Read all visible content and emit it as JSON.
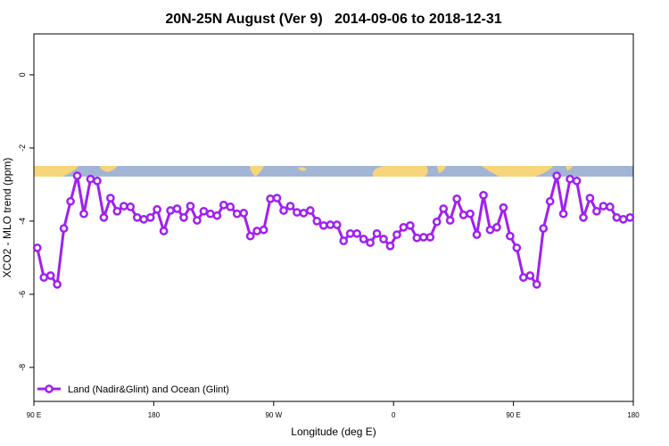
{
  "chart_data": {
    "type": "line",
    "title": "20N-25N August (Ver 9)   2014-09-06 to 2018-12-31",
    "xlabel": "Longitude (deg E)",
    "ylabel": "XCO2 - MLO trend (ppm)",
    "xlim": [
      90,
      540
    ],
    "xticks": [
      {
        "value": 90,
        "label": "90 E"
      },
      180,
      {
        "value": 270,
        "label": "90 W"
      },
      {
        "value": 360,
        "label": "0"
      },
      {
        "value": 450,
        "label": "90 E"
      },
      {
        "value": 540,
        "label": "180"
      }
    ],
    "ylim": [
      -8.93,
      1.12
    ],
    "yticks": [
      0,
      -2,
      -4,
      -6,
      -8
    ],
    "legend": "bottom left",
    "x": [
      92.5,
      97.5,
      102.5,
      107.5,
      112.5,
      117.5,
      122.5,
      127.5,
      132.5,
      137.5,
      142.5,
      147.5,
      152.5,
      157.5,
      162.5,
      167.5,
      172.5,
      177.5,
      182.5,
      187.5,
      192.5,
      197.5,
      202.5,
      207.5,
      212.5,
      217.5,
      222.5,
      227.5,
      232.5,
      237.5,
      242.5,
      247.5,
      252.5,
      257.5,
      262.5,
      267.5,
      272.5,
      277.5,
      282.5,
      287.5,
      292.5,
      297.5,
      302.5,
      307.5,
      312.5,
      317.5,
      322.5,
      327.5,
      332.5,
      337.5,
      342.5,
      347.5,
      352.5,
      357.5,
      362.5,
      367.5,
      372.5,
      377.5,
      382.5,
      387.5,
      392.5,
      397.5,
      402.5,
      407.5,
      412.5,
      417.5,
      422.5,
      427.5,
      432.5,
      437.5,
      442.5,
      447.5,
      452.5,
      457.5,
      462.5,
      467.5,
      472.5,
      477.5,
      482.5,
      487.5,
      492.5,
      497.5,
      502.5,
      507.5,
      512.5,
      517.5,
      522.5,
      527.5,
      532.5,
      537.5
    ],
    "series": [
      {
        "name": "Land (Nadir&Glint) and Ocean (Glint)",
        "color": "#a020f0",
        "values": [
          -4.73,
          -5.54,
          -5.49,
          -5.73,
          -4.2,
          -3.46,
          -2.76,
          -3.8,
          -2.85,
          -2.9,
          -3.9,
          -3.37,
          -3.73,
          -3.59,
          -3.61,
          -3.9,
          -3.95,
          -3.9,
          -3.68,
          -4.27,
          -3.71,
          -3.66,
          -3.9,
          -3.59,
          -3.98,
          -3.73,
          -3.8,
          -3.85,
          -3.56,
          -3.61,
          -3.8,
          -3.78,
          -4.41,
          -4.27,
          -4.24,
          -3.39,
          -3.37,
          -3.71,
          -3.59,
          -3.76,
          -3.78,
          -3.71,
          -4.0,
          -4.12,
          -4.1,
          -4.1,
          -4.54,
          -4.34,
          -4.34,
          -4.49,
          -4.59,
          -4.34,
          -4.49,
          -4.68,
          -4.37,
          -4.17,
          -4.12,
          -4.46,
          -4.44,
          -4.44,
          -4.02,
          -3.66,
          -3.98,
          -3.39,
          -3.83,
          -3.8,
          -4.37,
          -3.29,
          -4.24,
          -4.17,
          -3.63,
          -4.41,
          -4.73,
          -5.54,
          -5.49,
          -5.73,
          -4.2,
          -3.46,
          -2.76,
          -3.8,
          -2.85,
          -2.9,
          -3.9,
          -3.37,
          -3.73,
          -3.59,
          -3.61,
          -3.9,
          -3.95,
          -3.9
        ]
      }
    ]
  }
}
